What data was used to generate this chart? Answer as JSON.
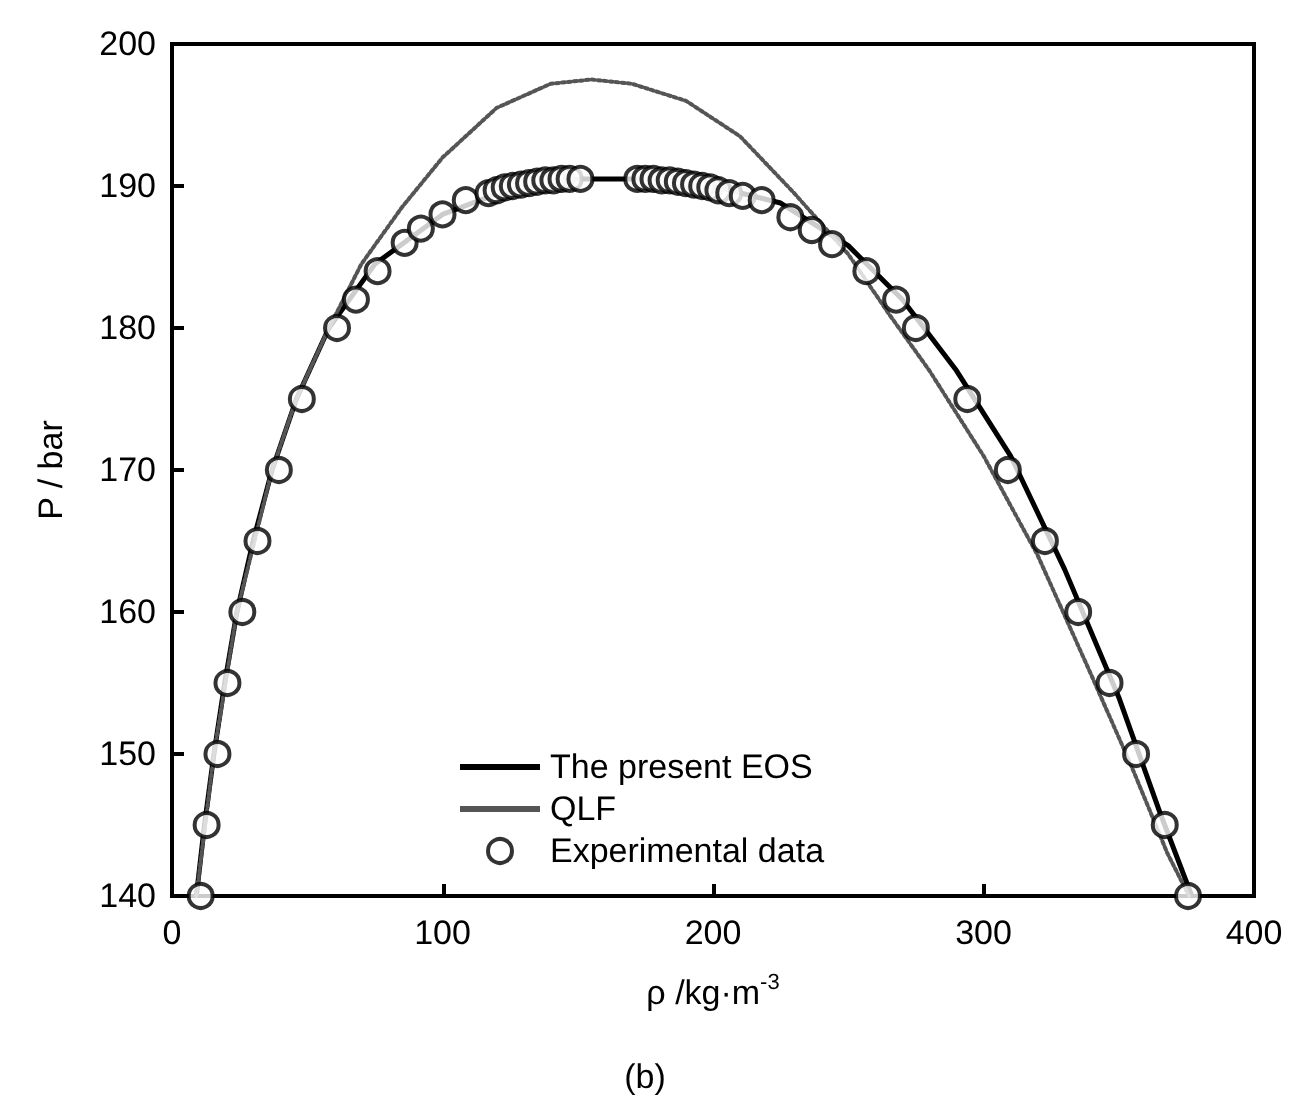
{
  "chart_data": {
    "type": "line",
    "xlabel": "ρ /kg·m$^{-3}$",
    "ylabel": "P / bar",
    "annotations": [
      "(b)"
    ],
    "xlim": [
      0,
      400
    ],
    "xticks": [
      0,
      100,
      200,
      300,
      400
    ],
    "ylim": [
      140,
      200
    ],
    "yticks": [
      140,
      150,
      160,
      170,
      180,
      190,
      200
    ],
    "grid": false,
    "legend": "bottom",
    "series": [
      {
        "name": "The present EOS",
        "color": "#000000",
        "line_style": "solid",
        "marker": "none",
        "x": [
          9,
          12,
          15.5,
          19.5,
          24,
          30,
          37,
          46,
          58,
          75,
          100,
          125,
          150,
          175,
          200,
          225,
          250,
          270,
          290,
          310,
          330,
          350,
          365,
          377
        ],
        "values": [
          140,
          145,
          150,
          155,
          160,
          165,
          170,
          175,
          180,
          184.5,
          188,
          189.8,
          190.5,
          190.5,
          190,
          188.8,
          185.8,
          182,
          177,
          171,
          163,
          154,
          146,
          140
        ]
      },
      {
        "name": "QLF",
        "color": "#555555",
        "line_style": "dotted",
        "marker": "none",
        "x": [
          9,
          15.5,
          24,
          37,
          46,
          58,
          70,
          85,
          100,
          120,
          140,
          155,
          170,
          190,
          210,
          230,
          250,
          265,
          280,
          300,
          320,
          340,
          355,
          368,
          376
        ],
        "values": [
          140,
          150,
          160,
          170,
          175,
          180,
          184.5,
          188.5,
          192,
          195.5,
          197.2,
          197.5,
          197.2,
          196,
          193.5,
          189.5,
          185.2,
          181,
          177,
          171,
          164,
          155.5,
          149,
          143,
          140
        ]
      },
      {
        "name": "Experimental data",
        "type": "scatter",
        "color": "#000000",
        "marker": "circle",
        "x": [
          10.6,
          12.8,
          16.8,
          20.5,
          26,
          31.6,
          39.5,
          48,
          61,
          68,
          76,
          86,
          92,
          100,
          108.6,
          117,
          120,
          123,
          126,
          129,
          132,
          135,
          138,
          141,
          144,
          147,
          151,
          172,
          175,
          178,
          181,
          184,
          187,
          190,
          193,
          196,
          199,
          202,
          206,
          211,
          218,
          228.6,
          236.5,
          244,
          256.7,
          267.7,
          275,
          294,
          309,
          322.7,
          335,
          346.6,
          356.4,
          367,
          375.6
        ],
        "values": [
          140,
          145,
          150,
          155,
          160,
          165,
          170,
          175,
          180,
          182,
          184,
          186,
          187,
          188,
          189,
          189.5,
          189.7,
          189.9,
          190,
          190.1,
          190.2,
          190.3,
          190.4,
          190.4,
          190.5,
          190.5,
          190.5,
          190.5,
          190.5,
          190.5,
          190.4,
          190.4,
          190.3,
          190.2,
          190.1,
          190,
          189.9,
          189.7,
          189.5,
          189.3,
          189,
          187.8,
          186.9,
          185.9,
          184,
          182,
          180,
          175,
          170,
          165,
          160,
          155,
          150,
          145,
          140
        ]
      }
    ]
  }
}
